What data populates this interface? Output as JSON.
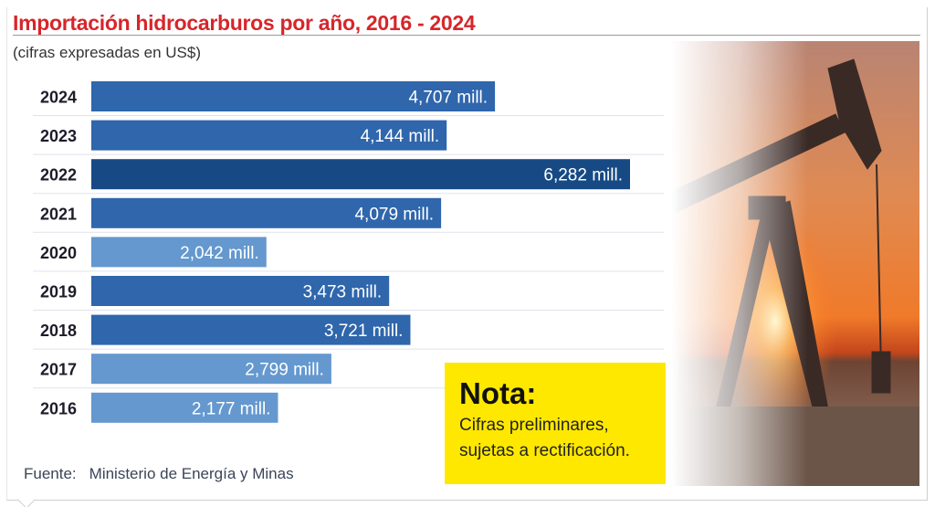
{
  "chart_data": {
    "type": "bar",
    "orientation": "horizontal",
    "title": "Importación hidrocarburos por año, 2016 - 2024",
    "subtitle": "(cifras expresadas en US$)",
    "categories": [
      "2024",
      "2023",
      "2022",
      "2021",
      "2020",
      "2019",
      "2018",
      "2017",
      "2016"
    ],
    "values": [
      4707,
      4144,
      6282,
      4079,
      2042,
      3473,
      3721,
      2799,
      2177
    ],
    "labels": [
      "4,707 mill.",
      "4,144 mill.",
      "6,282 mill.",
      "4,079 mill.",
      "2,042 mill.",
      "3,473 mill.",
      "3,721 mill.",
      "2,799 mill.",
      "2,177 mill."
    ],
    "unit": "mill.",
    "xlim": [
      0,
      6282
    ],
    "highlight": "2022",
    "colors": {
      "high": "#2f66ac",
      "max": "#174a85",
      "low": "#6498cf"
    }
  },
  "note": {
    "title": "Nota:",
    "lines": [
      "Cifras preliminares,",
      "sujetas a rectificación."
    ],
    "color": "#ffe800"
  },
  "source": {
    "label": "Fuente:",
    "text": "Ministerio de Energía y Minas"
  },
  "colors": {
    "title": "#d6262b"
  }
}
